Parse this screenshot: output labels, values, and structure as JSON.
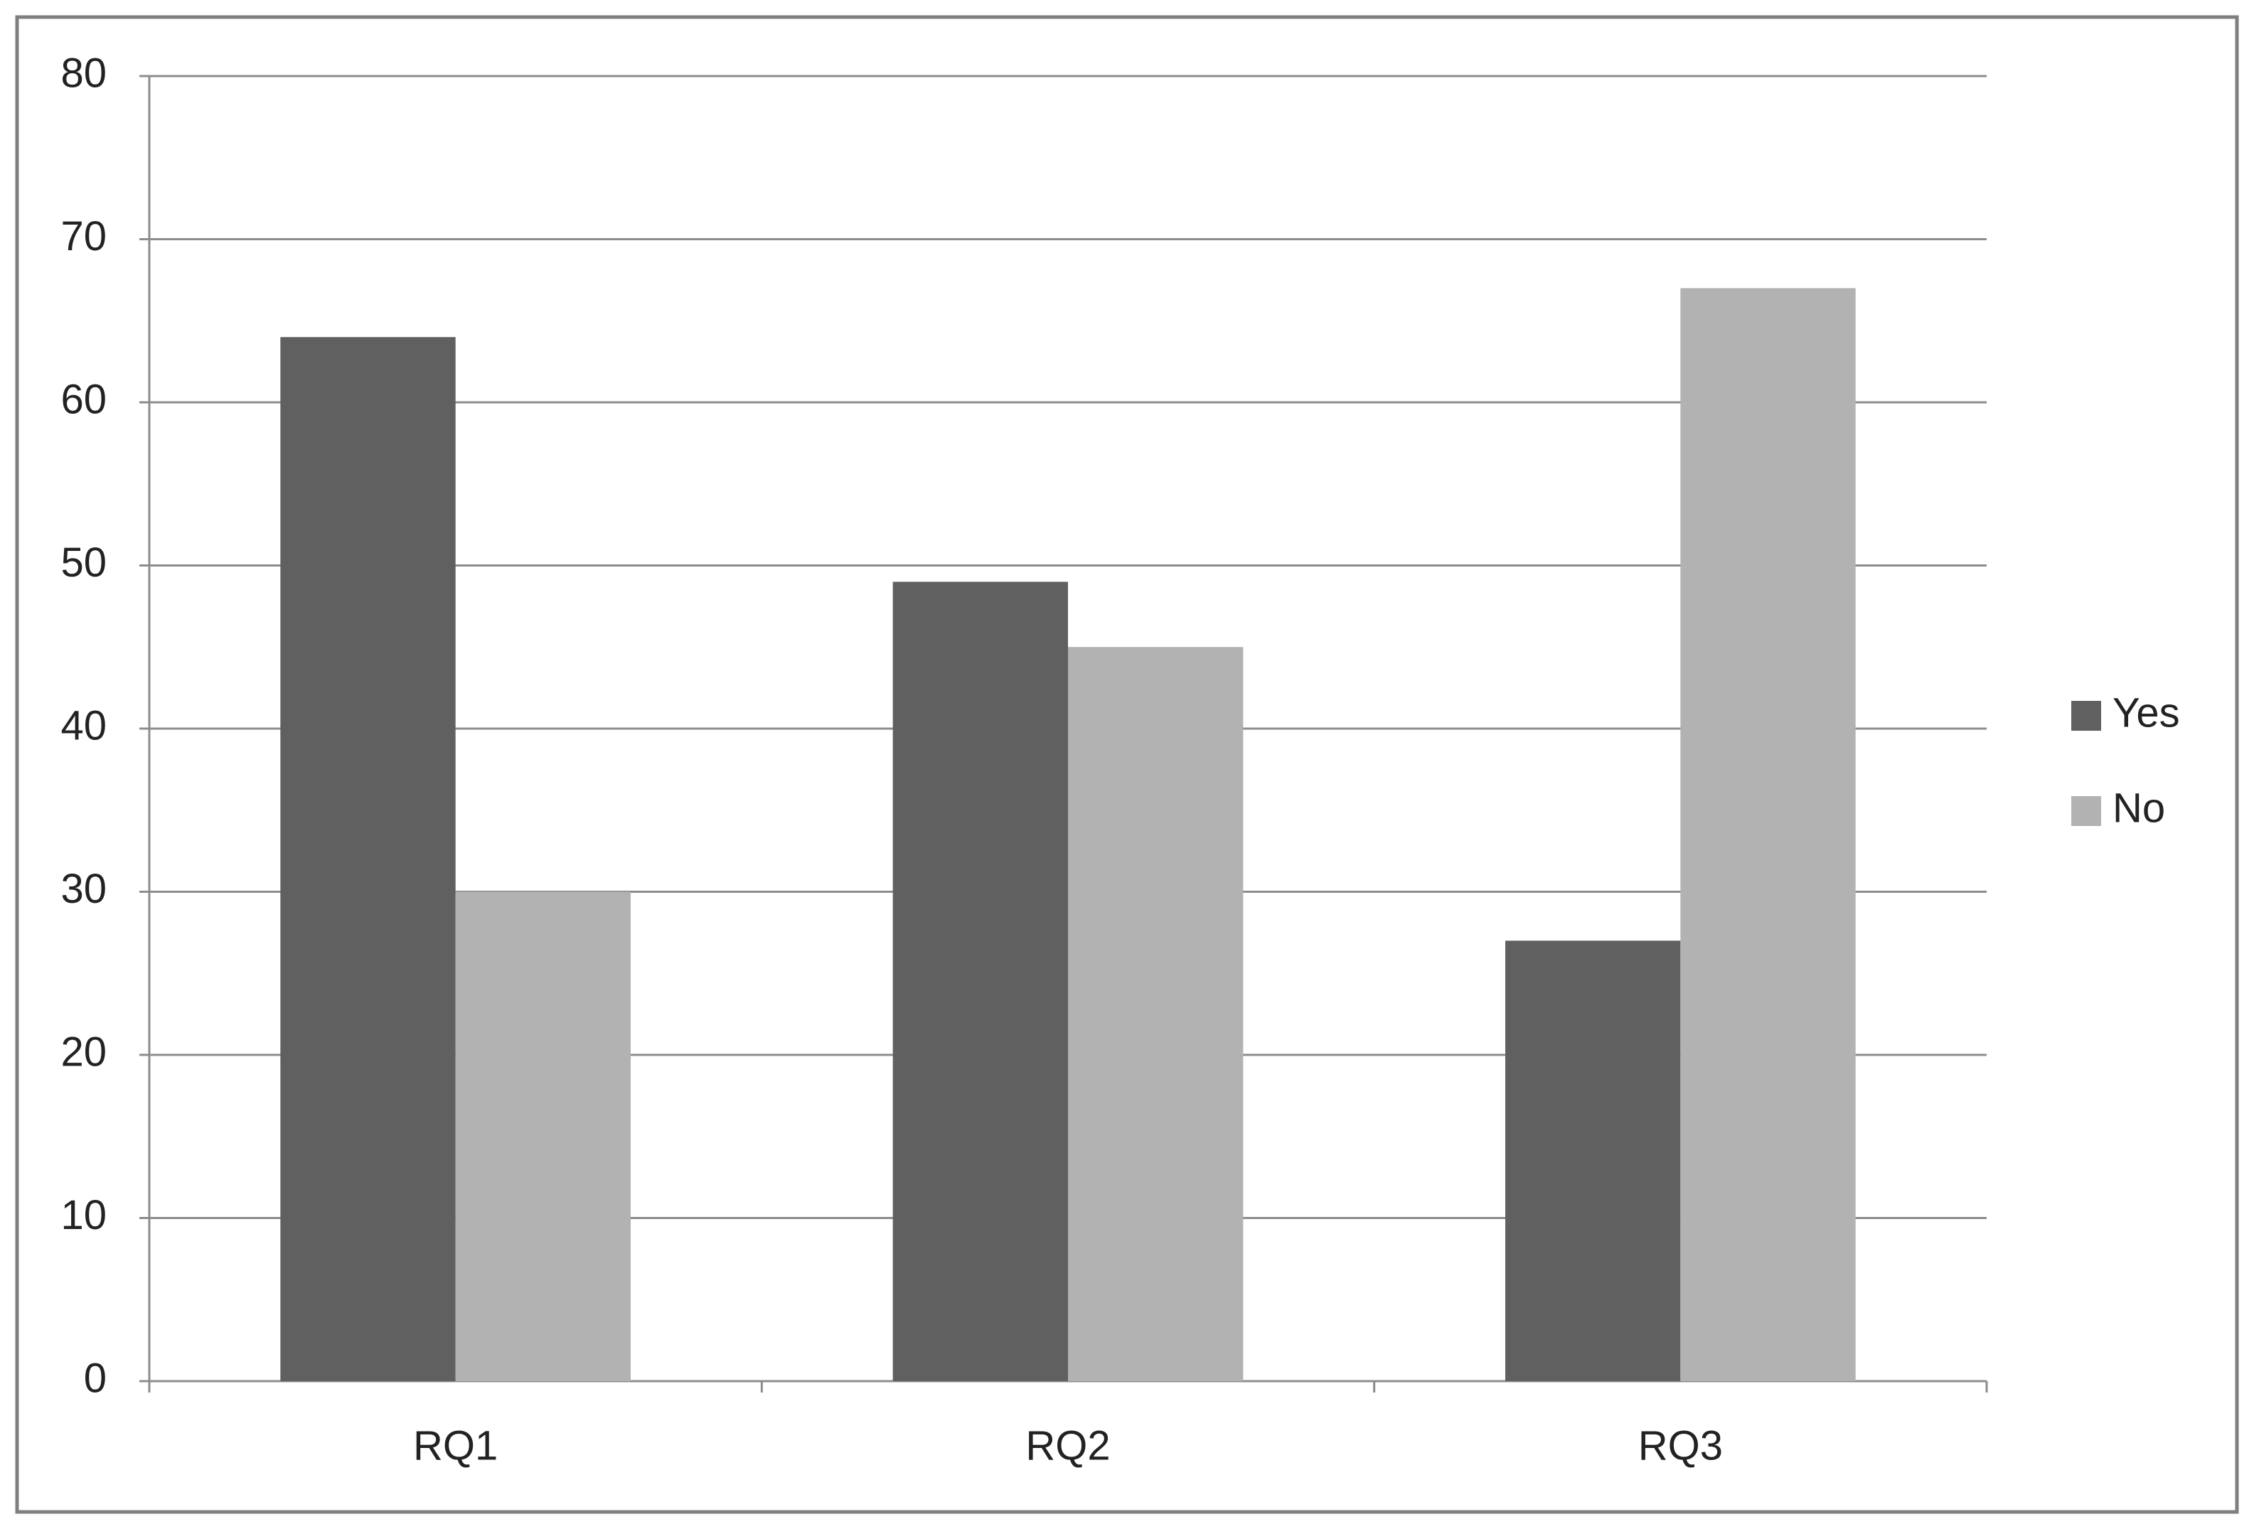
{
  "chart_data": {
    "type": "bar",
    "categories": [
      "RQ1",
      "RQ2",
      "RQ3"
    ],
    "series": [
      {
        "name": "Yes",
        "color": "#606060",
        "values": [
          64,
          49,
          27
        ]
      },
      {
        "name": "No",
        "color": "#b2b2b2",
        "values": [
          30,
          45,
          67
        ]
      }
    ],
    "ylim": [
      0,
      80
    ],
    "yticks": [
      0,
      10,
      20,
      30,
      40,
      50,
      60,
      70,
      80
    ],
    "grid": true,
    "legend": "right"
  }
}
